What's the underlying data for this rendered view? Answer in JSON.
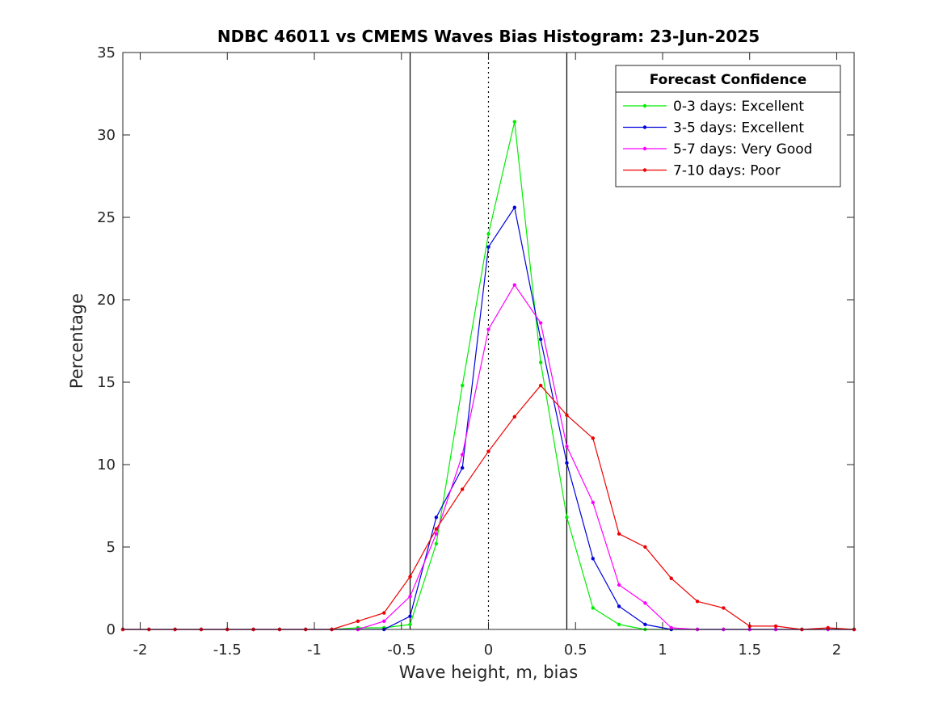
{
  "chart_data": {
    "type": "line",
    "title": "NDBC 46011 vs CMEMS Waves Bias Histogram: 23-Jun-2025",
    "xlabel": "Wave height, m, bias",
    "ylabel": "Percentage",
    "xlim": [
      -2.1,
      2.1
    ],
    "ylim": [
      0,
      35
    ],
    "xticks": [
      -2,
      -1.5,
      -1,
      -0.5,
      0,
      0.5,
      1,
      1.5,
      2
    ],
    "xtick_labels": [
      "-2",
      "-1.5",
      "-1",
      "-0.5",
      "0",
      "0.5",
      "1",
      "1.5",
      "2"
    ],
    "yticks": [
      0,
      5,
      10,
      15,
      20,
      25,
      30,
      35
    ],
    "ytick_labels": [
      "0",
      "5",
      "10",
      "15",
      "20",
      "25",
      "30",
      "35"
    ],
    "grid": false,
    "reference_lines": [
      {
        "x": -0.45,
        "style": "solid",
        "color": "#000000"
      },
      {
        "x": 0,
        "style": "dotted",
        "color": "#000000"
      },
      {
        "x": 0.45,
        "style": "solid",
        "color": "#000000"
      }
    ],
    "legend": {
      "title": "Forecast Confidence",
      "position": "top-right"
    },
    "x": [
      -2.1,
      -1.95,
      -1.8,
      -1.65,
      -1.5,
      -1.35,
      -1.2,
      -1.05,
      -0.9,
      -0.75,
      -0.6,
      -0.45,
      -0.3,
      -0.15,
      0,
      0.15,
      0.3,
      0.45,
      0.6,
      0.75,
      0.9,
      1.05,
      1.2,
      1.35,
      1.5,
      1.65,
      1.8,
      1.95,
      2.1
    ],
    "series": [
      {
        "name": "0-3 days: Excellent",
        "color": "#00ee00",
        "values": [
          0,
          0,
          0,
          0,
          0,
          0,
          0,
          0,
          0,
          0.1,
          0.1,
          0.3,
          5.2,
          14.8,
          24.0,
          30.8,
          16.2,
          6.8,
          1.3,
          0.3,
          0,
          0,
          0,
          0,
          0,
          0,
          0,
          0,
          0
        ]
      },
      {
        "name": "3-5 days: Excellent",
        "color": "#0000dd",
        "values": [
          0,
          0,
          0,
          0,
          0,
          0,
          0,
          0,
          0,
          0,
          0,
          0.8,
          6.8,
          9.8,
          23.2,
          25.6,
          17.6,
          10.1,
          4.3,
          1.4,
          0.3,
          0,
          0,
          0,
          0,
          0,
          0,
          0,
          0
        ]
      },
      {
        "name": "5-7 days: Very Good",
        "color": "#ff00ff",
        "values": [
          0,
          0,
          0,
          0,
          0,
          0,
          0,
          0,
          0,
          0,
          0.5,
          2.0,
          5.8,
          10.6,
          18.2,
          20.9,
          18.6,
          11.1,
          7.7,
          2.7,
          1.6,
          0.1,
          0,
          0,
          0,
          0,
          0,
          0,
          0
        ]
      },
      {
        "name": "7-10 days: Poor",
        "color": "#ee0000",
        "values": [
          0,
          0,
          0,
          0,
          0,
          0,
          0,
          0,
          0,
          0.5,
          1.0,
          3.2,
          6.1,
          8.5,
          10.8,
          12.9,
          14.8,
          13.0,
          11.6,
          5.8,
          5.0,
          3.1,
          1.7,
          1.3,
          0.2,
          0.2,
          0,
          0.1,
          0
        ]
      }
    ]
  }
}
